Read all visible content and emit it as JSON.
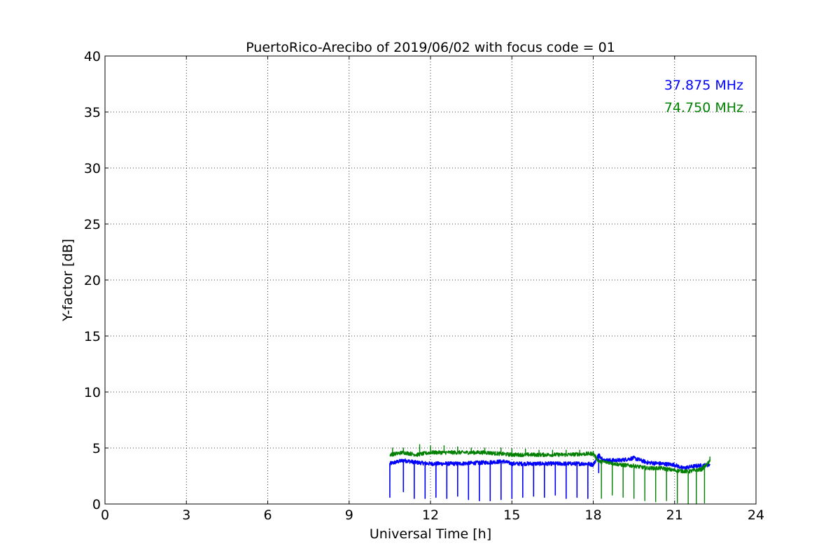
{
  "chart_data": {
    "type": "line",
    "title": "PuertoRico-Arecibo of 2019/06/02 with focus code = 01",
    "xlabel": "Universal Time [h]",
    "ylabel": "Y-factor [dB]",
    "xlim": [
      0,
      24
    ],
    "ylim": [
      0,
      40
    ],
    "xticks": [
      0,
      3,
      6,
      9,
      12,
      15,
      18,
      21,
      24
    ],
    "yticks": [
      0,
      5,
      10,
      15,
      20,
      25,
      30,
      35,
      40
    ],
    "grid": true,
    "legend_placement": "top-right",
    "series": [
      {
        "name": "37.875 MHz",
        "color": "#0000ff",
        "start": 10.5,
        "end": 22.3,
        "baseline": [
          [
            10.5,
            3.6
          ],
          [
            11.0,
            3.9
          ],
          [
            11.5,
            3.7
          ],
          [
            12.0,
            3.6
          ],
          [
            13.0,
            3.6
          ],
          [
            14.0,
            3.7
          ],
          [
            14.7,
            3.8
          ],
          [
            15.0,
            3.6
          ],
          [
            16.0,
            3.6
          ],
          [
            17.0,
            3.6
          ],
          [
            17.8,
            3.6
          ],
          [
            18.0,
            3.5
          ],
          [
            18.2,
            4.4
          ],
          [
            18.4,
            3.9
          ],
          [
            19.0,
            3.9
          ],
          [
            19.5,
            4.1
          ],
          [
            20.0,
            3.7
          ],
          [
            20.5,
            3.6
          ],
          [
            21.0,
            3.5
          ],
          [
            21.3,
            3.2
          ],
          [
            21.8,
            3.4
          ],
          [
            22.3,
            3.5
          ]
        ],
        "dips": [
          [
            10.5,
            0.6
          ],
          [
            11.0,
            1.1
          ],
          [
            11.4,
            0.5
          ],
          [
            11.8,
            0.5
          ],
          [
            12.2,
            0.6
          ],
          [
            12.6,
            0.5
          ],
          [
            13.0,
            0.7
          ],
          [
            13.4,
            0.4
          ],
          [
            13.8,
            0.3
          ],
          [
            14.2,
            0.3
          ],
          [
            14.6,
            0.4
          ],
          [
            15.0,
            0.5
          ],
          [
            15.4,
            0.6
          ],
          [
            15.8,
            0.7
          ],
          [
            16.2,
            0.6
          ],
          [
            16.6,
            0.8
          ],
          [
            17.0,
            0.5
          ],
          [
            17.4,
            0.6
          ],
          [
            17.8,
            0.5
          ],
          [
            18.2,
            2.8
          ]
        ]
      },
      {
        "name": "74.750 MHz",
        "color": "#008000",
        "start": 10.5,
        "end": 22.3,
        "baseline": [
          [
            10.5,
            4.4
          ],
          [
            11.0,
            4.6
          ],
          [
            11.5,
            4.4
          ],
          [
            12.0,
            4.6
          ],
          [
            13.0,
            4.6
          ],
          [
            14.0,
            4.6
          ],
          [
            14.5,
            4.5
          ],
          [
            15.0,
            4.4
          ],
          [
            16.0,
            4.4
          ],
          [
            17.0,
            4.4
          ],
          [
            18.0,
            4.5
          ],
          [
            18.2,
            3.8
          ],
          [
            18.6,
            3.7
          ],
          [
            19.0,
            3.5
          ],
          [
            19.5,
            3.4
          ],
          [
            20.0,
            3.2
          ],
          [
            20.5,
            3.2
          ],
          [
            21.0,
            3.0
          ],
          [
            21.5,
            2.9
          ],
          [
            22.0,
            3.1
          ],
          [
            22.3,
            3.8
          ]
        ],
        "peaks": [
          [
            10.6,
            5.0
          ],
          [
            11.0,
            5.0
          ],
          [
            11.6,
            5.3
          ],
          [
            12.0,
            5.2
          ],
          [
            12.5,
            5.2
          ],
          [
            13.0,
            5.1
          ],
          [
            13.5,
            5.0
          ],
          [
            14.0,
            5.0
          ],
          [
            14.6,
            5.0
          ],
          [
            15.0,
            4.9
          ],
          [
            15.5,
            4.9
          ],
          [
            16.0,
            4.8
          ],
          [
            16.5,
            4.8
          ],
          [
            17.0,
            4.8
          ],
          [
            17.5,
            4.8
          ],
          [
            18.0,
            4.7
          ],
          [
            22.3,
            4.2
          ]
        ],
        "dips": [
          [
            18.3,
            0.5
          ],
          [
            18.7,
            0.8
          ],
          [
            19.1,
            0.6
          ],
          [
            19.5,
            0.5
          ],
          [
            19.9,
            0.3
          ],
          [
            20.3,
            0.2
          ],
          [
            20.7,
            0.3
          ],
          [
            21.1,
            0.1
          ],
          [
            21.5,
            0.0
          ],
          [
            21.8,
            0.0
          ],
          [
            22.1,
            0.1
          ]
        ]
      }
    ]
  }
}
